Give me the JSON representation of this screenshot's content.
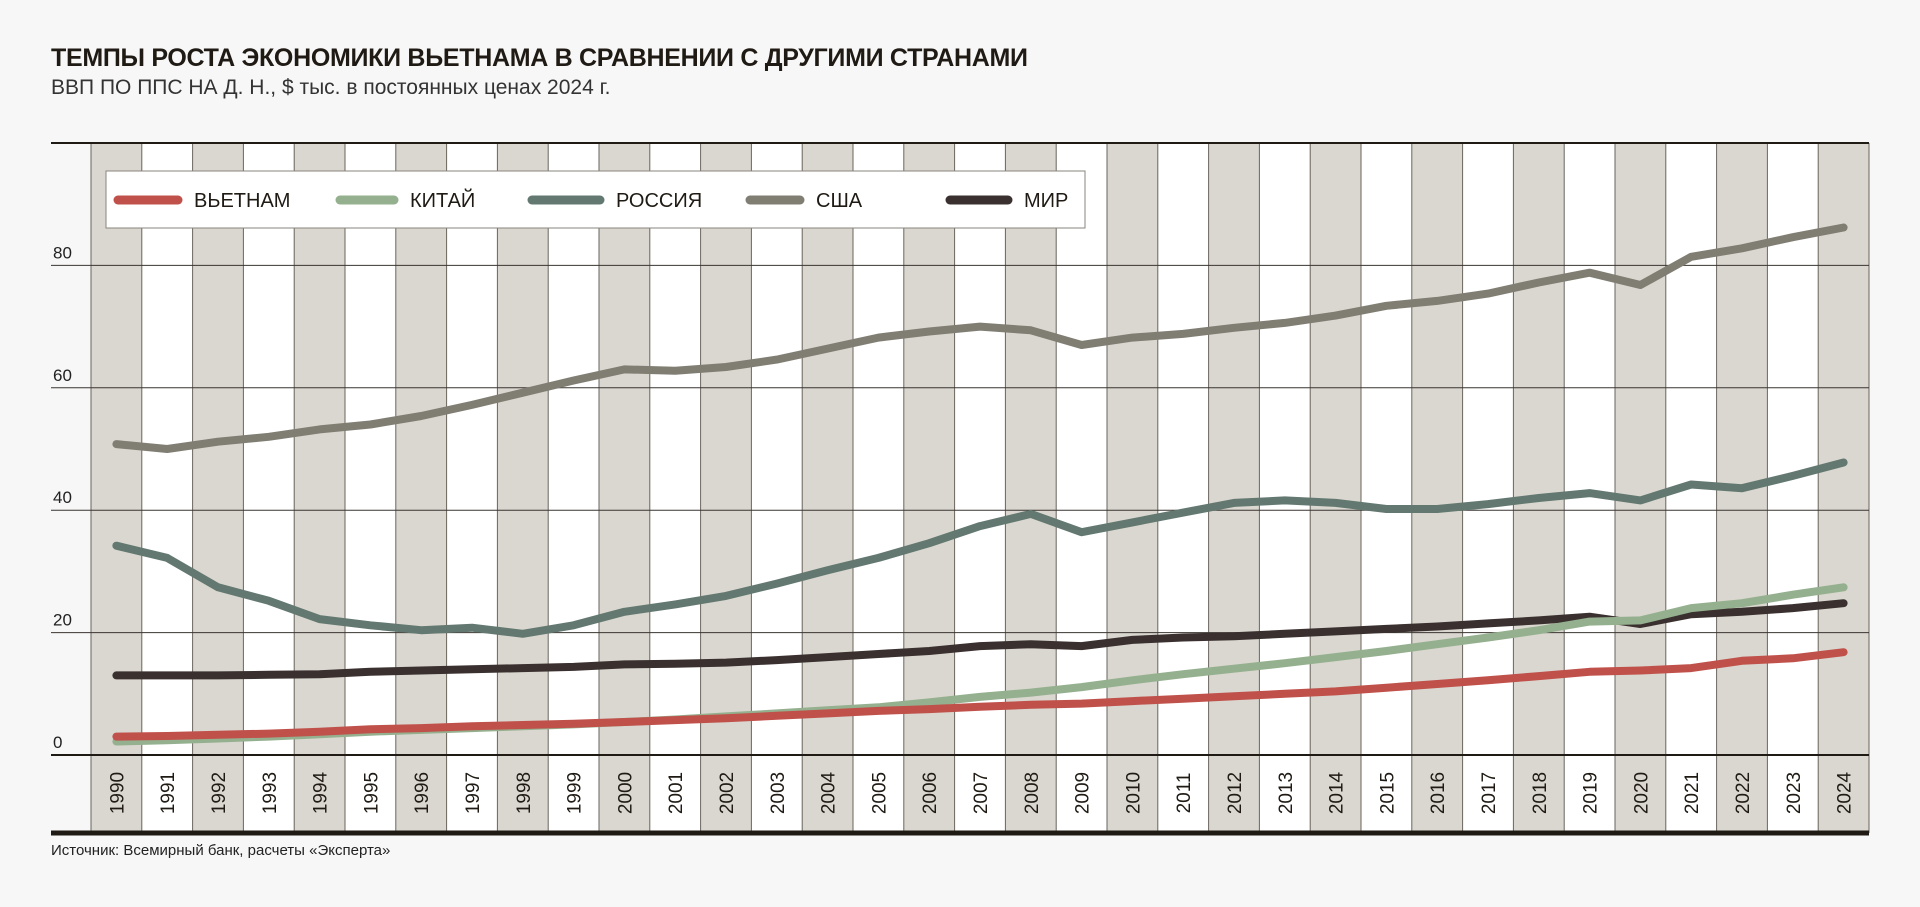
{
  "chart_data": {
    "type": "line",
    "title": "ТЕМПЫ РОСТА ЭКОНОМИКИ ВЬЕТНАМА В СРАВНЕНИИ С ДРУГИМИ СТРАНАМИ",
    "subtitle": "ВВП ПО ППС НА Д. Н., $ тыс. в постоянных ценах 2024 г.",
    "source": "Источник: Всемирный банк, расчеты «Эксперта»",
    "xlabel": "",
    "ylabel": "",
    "ylim": [
      0,
      100
    ],
    "yticks": [
      0,
      20,
      40,
      60,
      80
    ],
    "grid": true,
    "legend_position": "top-left",
    "x": [
      1990,
      1991,
      1992,
      1993,
      1994,
      1995,
      1996,
      1997,
      1998,
      1999,
      2000,
      2001,
      2002,
      2003,
      2004,
      2005,
      2006,
      2007,
      2008,
      2009,
      2010,
      2011,
      2012,
      2013,
      2014,
      2015,
      2016,
      2017,
      2018,
      2019,
      2020,
      2021,
      2022,
      2023,
      2024
    ],
    "series": [
      {
        "name": "ВЬЕТНАМ",
        "color": "#c0504a",
        "values": [
          3.0,
          3.1,
          3.3,
          3.5,
          3.8,
          4.2,
          4.4,
          4.7,
          4.9,
          5.1,
          5.4,
          5.7,
          6.0,
          6.4,
          6.8,
          7.2,
          7.5,
          7.9,
          8.2,
          8.4,
          8.8,
          9.2,
          9.6,
          10.0,
          10.4,
          11.0,
          11.6,
          12.2,
          12.9,
          13.6,
          13.8,
          14.2,
          15.4,
          15.8,
          16.8
        ]
      },
      {
        "name": "КИТАЙ",
        "color": "#94b08e",
        "values": [
          2.2,
          2.4,
          2.7,
          3.0,
          3.4,
          3.8,
          4.1,
          4.4,
          4.7,
          5.0,
          5.4,
          5.8,
          6.3,
          6.8,
          7.3,
          7.8,
          8.6,
          9.5,
          10.2,
          11.1,
          12.2,
          13.2,
          14.1,
          15.0,
          16.0,
          17.0,
          18.1,
          19.2,
          20.4,
          21.8,
          22.0,
          24.0,
          24.8,
          26.2,
          27.4
        ]
      },
      {
        "name": "РОССИЯ",
        "color": "#627870",
        "values": [
          34.2,
          32.2,
          27.4,
          25.2,
          22.2,
          21.2,
          20.4,
          20.8,
          19.8,
          21.2,
          23.4,
          24.6,
          26.0,
          28.0,
          30.2,
          32.2,
          34.6,
          37.4,
          39.4,
          36.4,
          38.0,
          39.6,
          41.2,
          41.6,
          41.2,
          40.2,
          40.2,
          41.0,
          42.0,
          42.8,
          41.6,
          44.2,
          43.6,
          45.6,
          47.8
        ]
      },
      {
        "name": "США",
        "color": "#807d73",
        "values": [
          50.8,
          50.0,
          51.2,
          52.0,
          53.2,
          54.0,
          55.4,
          57.2,
          59.2,
          61.2,
          63.0,
          62.8,
          63.4,
          64.6,
          66.4,
          68.2,
          69.2,
          70.0,
          69.4,
          67.0,
          68.2,
          68.8,
          69.8,
          70.6,
          71.8,
          73.4,
          74.2,
          75.4,
          77.2,
          78.8,
          76.8,
          81.4,
          82.8,
          84.6,
          86.2
        ]
      },
      {
        "name": "МИР",
        "color": "#3a302f",
        "values": [
          13.0,
          13.0,
          13.0,
          13.1,
          13.2,
          13.6,
          13.8,
          14.0,
          14.2,
          14.4,
          14.8,
          14.9,
          15.1,
          15.5,
          16.0,
          16.5,
          17.0,
          17.8,
          18.1,
          17.8,
          18.8,
          19.2,
          19.4,
          19.8,
          20.2,
          20.6,
          21.0,
          21.5,
          22.0,
          22.6,
          21.4,
          23.0,
          23.4,
          24.0,
          24.8
        ]
      }
    ]
  },
  "colors": {
    "background": "#f7f7f7",
    "column_shade": "#d9d7cf",
    "grid": "#3a3530"
  }
}
